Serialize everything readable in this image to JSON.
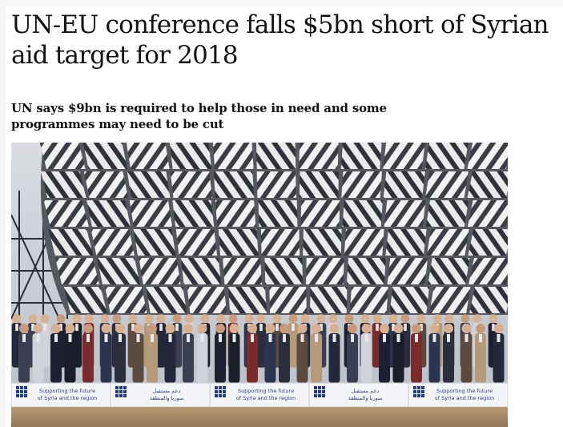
{
  "article": {
    "headline": "UN-EU conference falls $5bn short of Syrian aid target for 2018",
    "standfirst": "UN says $9bn is required to help those in need and some programmes may need to be cut"
  },
  "photo": {
    "banner_segments": [
      {
        "line1": "Supporting the future",
        "line2": "of Syria and the region",
        "script": "latin"
      },
      {
        "line1": "دعم مستقبل",
        "line2": "سوريا والمنطقة",
        "script": "arabic"
      },
      {
        "line1": "Supporting the future",
        "line2": "of Syria and the region",
        "script": "latin"
      },
      {
        "line1": "دعم مستقبل",
        "line2": "سوريا والمنطقة",
        "script": "arabic"
      },
      {
        "line1": "Supporting the future",
        "line2": "of Syria and the region",
        "script": "latin"
      }
    ],
    "colors": {
      "banner_blue": "#1f3d8c",
      "banner_bg": "#f4f5f8",
      "suit_dark": "#1c2030",
      "structure_grey": "#2a2d33"
    }
  }
}
